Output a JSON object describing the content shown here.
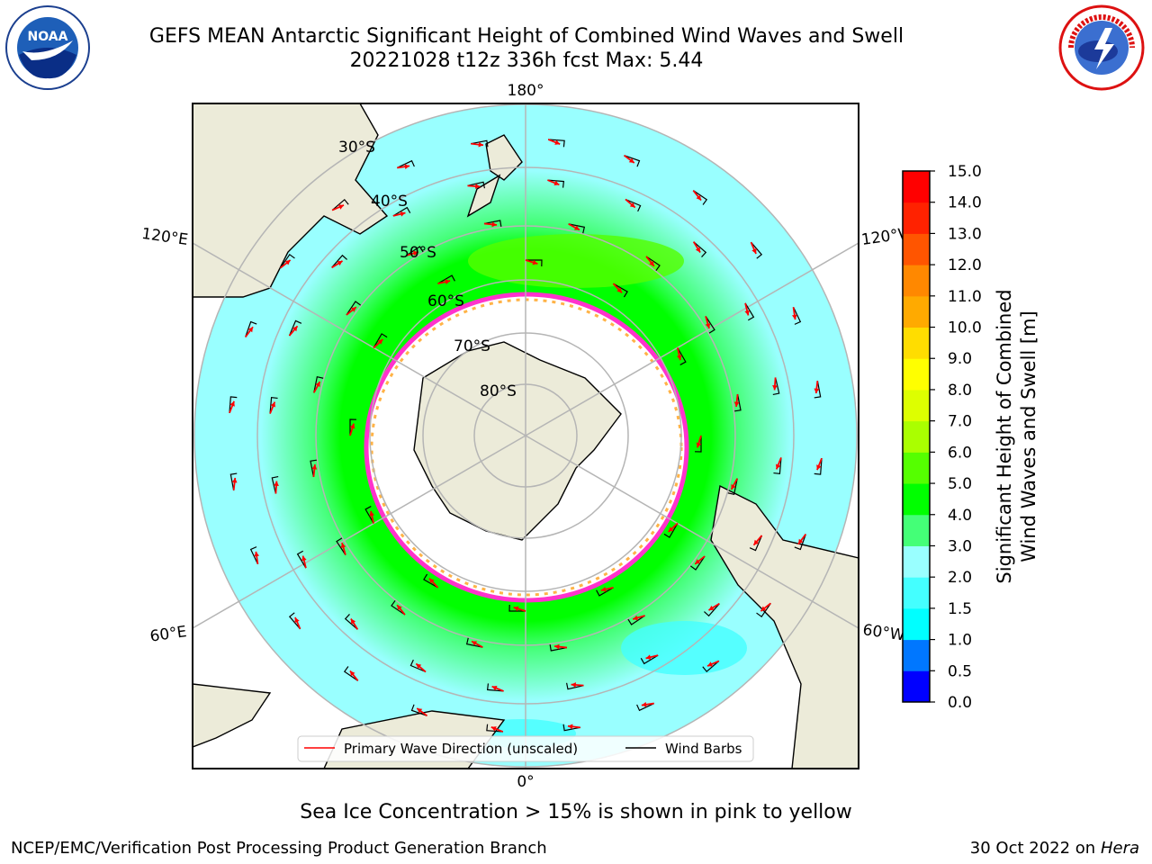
{
  "title_line1": "GEFS MEAN Antarctic Significant Height of Combined Wind Waves and Swell",
  "title_line2": "20221028 t12z 336h fcst   Max: 5.44",
  "logos": {
    "left": "noaa-logo",
    "right": "national-weather-service-logo"
  },
  "map": {
    "projection": "south-polar-stereographic",
    "lon_labels": [
      "180°",
      "120°E",
      "120°W",
      "60°E",
      "60°W",
      "0°"
    ],
    "lat_labels": [
      "30°S",
      "40°S",
      "50°S",
      "60°S",
      "70°S",
      "80°S"
    ],
    "colors": {
      "land": "#ecebd9",
      "ice_interior": "#ffffff",
      "ice_edge": "#ff33cc",
      "ice_patch": "#ffb347",
      "wave_arrow": "#ff0000",
      "wind_barb": "#000000",
      "graticule": "#b5b5b5"
    }
  },
  "legend": {
    "items": [
      {
        "label": "Primary Wave Direction (unscaled)",
        "color": "#ff0000"
      },
      {
        "label": "Wind Barbs",
        "color": "#000000"
      }
    ]
  },
  "colorbar": {
    "label_line1": "Significant Height of Combined",
    "label_line2": "Wind Waves and Swell [m]",
    "ticks": [
      "0.0",
      "0.5",
      "1.0",
      "1.5",
      "2.0",
      "3.0",
      "4.0",
      "5.0",
      "6.0",
      "7.0",
      "8.0",
      "9.0",
      "10.0",
      "11.0",
      "12.0",
      "13.0",
      "14.0",
      "15.0"
    ],
    "colors": [
      "#0000ff",
      "#0077ff",
      "#00ffff",
      "#44ffff",
      "#99ffff",
      "#44ff77",
      "#00ff00",
      "#55ff00",
      "#aaff00",
      "#ddff00",
      "#ffff00",
      "#ffdd00",
      "#ffaa00",
      "#ff8800",
      "#ff5500",
      "#ff2200",
      "#ff0000"
    ]
  },
  "chart_data": {
    "type": "heatmap",
    "variable": "Significant Height of Combined Wind Waves and Swell",
    "units": "m",
    "max": 5.44,
    "levels": [
      0.0,
      0.5,
      1.0,
      1.5,
      2.0,
      3.0,
      4.0,
      5.0,
      6.0,
      7.0,
      8.0,
      9.0,
      10.0,
      11.0,
      12.0,
      13.0,
      14.0,
      15.0
    ]
  },
  "caption": "Sea Ice Concentration > 15% is shown in pink to yellow",
  "footer": {
    "left": "NCEP/EMC/Verification Post Processing Product Generation Branch",
    "right_text": "30 Oct 2022 on ",
    "right_italic": "Hera"
  }
}
